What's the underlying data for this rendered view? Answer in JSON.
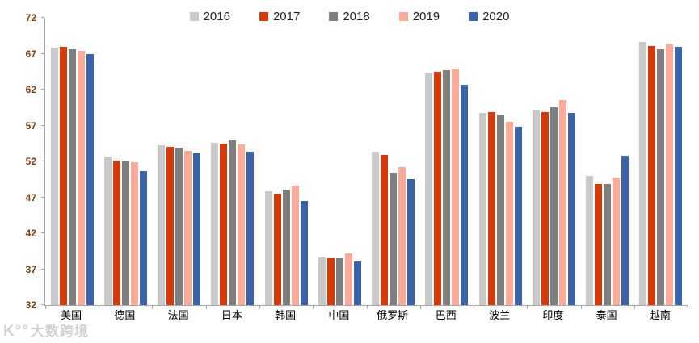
{
  "chart_data": {
    "type": "bar",
    "title": "",
    "xlabel": "",
    "ylabel": "",
    "categories": [
      "美国",
      "德国",
      "法国",
      "日本",
      "韩国",
      "中国",
      "俄罗斯",
      "巴西",
      "波兰",
      "印度",
      "泰国",
      "越南"
    ],
    "series": [
      {
        "name": "2016",
        "color": "#c9c9c9",
        "values": [
          67.8,
          52.7,
          54.2,
          54.6,
          47.9,
          38.6,
          53.3,
          64.4,
          58.7,
          59.2,
          50.0,
          68.6
        ]
      },
      {
        "name": "2017",
        "color": "#d53a08",
        "values": [
          68.0,
          52.1,
          54.0,
          54.5,
          47.5,
          38.5,
          52.9,
          64.5,
          58.8,
          58.8,
          48.9,
          68.1
        ]
      },
      {
        "name": "2018",
        "color": "#7f7f7f",
        "values": [
          67.6,
          52.0,
          53.9,
          54.9,
          48.1,
          38.5,
          50.4,
          64.7,
          58.5,
          59.5,
          48.8,
          67.6
        ]
      },
      {
        "name": "2019",
        "color": "#fbab97",
        "values": [
          67.4,
          51.9,
          53.5,
          54.4,
          48.6,
          39.2,
          51.2,
          64.9,
          57.5,
          60.5,
          49.8,
          68.3
        ]
      },
      {
        "name": "2020",
        "color": "#3b63a9",
        "values": [
          67.0,
          50.7,
          53.1,
          53.4,
          46.5,
          38.1,
          49.5,
          62.7,
          56.8,
          58.7,
          52.8,
          68.0
        ]
      }
    ],
    "ylim": [
      32,
      72
    ],
    "yticks": [
      32,
      37,
      42,
      47,
      52,
      57,
      62,
      67,
      72
    ],
    "grid": false,
    "legend_position": "top-center"
  },
  "watermark": {
    "logo": "K°°",
    "text": "大数跨境"
  },
  "colors": {
    "axis": "#a6a6a6",
    "ytick_label": "#7c3d0e",
    "category_label": "#000000",
    "background": "#ffffff"
  }
}
